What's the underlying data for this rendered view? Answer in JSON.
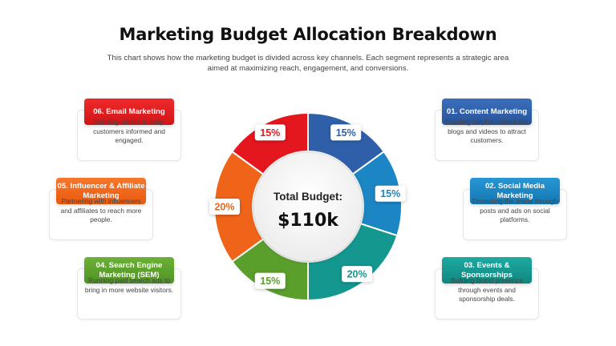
{
  "header": {
    "title": "Marketing Budget Allocation Breakdown",
    "subtitle": "This chart shows how the marketing budget is divided across key channels. Each segment represents a strategic area aimed at maximizing reach, engagement, and conversions."
  },
  "center": {
    "label": "Total Budget:",
    "value": "$110k"
  },
  "chart_data": {
    "type": "pie",
    "variant": "donut",
    "total_label": "Total Budget:",
    "total_value": "$110k",
    "segments": [
      {
        "label": "01. Content Marketing",
        "value": 15,
        "value_label": "15%",
        "color": "#2e5fa8"
      },
      {
        "label": "02. Social Media Marketing",
        "value": 15,
        "value_label": "15%",
        "color": "#1b86c3"
      },
      {
        "label": "03. Events & Sponsorships",
        "value": 20,
        "value_label": "20%",
        "color": "#13978f"
      },
      {
        "label": "04. Search Engine Marketing (SEM)",
        "value": 15,
        "value_label": "15%",
        "color": "#5a9e2c"
      },
      {
        "label": "05. Influencer & Affiliate Marketing",
        "value": 20,
        "value_label": "20%",
        "color": "#ef6419"
      },
      {
        "label": "06. Email Marketing",
        "value": 15,
        "value_label": "15%",
        "color": "#e3171d"
      }
    ]
  },
  "cards": [
    {
      "title": "01. Content Marketing",
      "desc": "Creating helpful content like blogs and videos to attract customers.",
      "color": "#2e5fa8"
    },
    {
      "title": "02. Social Media Marketing",
      "desc": "Promoting the brand through posts and ads on social platforms.",
      "color": "#1b86c3"
    },
    {
      "title": "03. Events & Sponsorships",
      "desc": "Building brand presence through events and sponsorship deals.",
      "color": "#13978f"
    },
    {
      "title": "04. Search Engine Marketing (SEM)",
      "desc": "Running paid search ads to bring in more website visitors.",
      "color": "#5a9e2c"
    },
    {
      "title": "05. Influencer & Affiliate Marketing",
      "desc": "Partnering with influencers and affiliates to reach more people.",
      "color": "#ef6419"
    },
    {
      "title": "06. Email Marketing",
      "desc": "Sending emails to keep customers informed and engaged.",
      "color": "#e3171d"
    }
  ]
}
